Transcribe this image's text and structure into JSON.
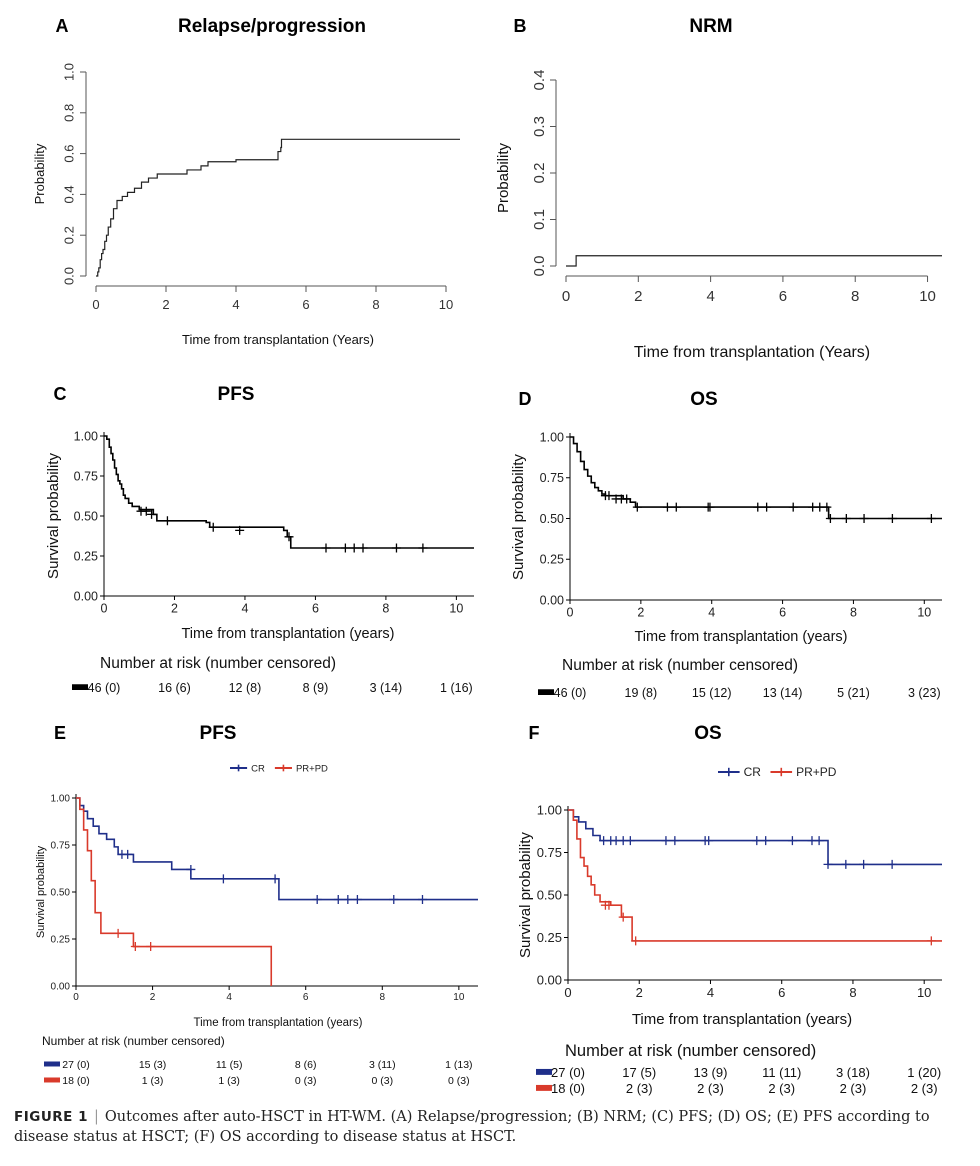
{
  "caption": {
    "label": "FIGURE 1",
    "separator": "|",
    "text": "Outcomes after auto-HSCT in HT-WM. (A) Relapse/progression; (B) NRM; (C) PFS; (D) OS; (E) PFS according to disease status at HSCT; (F) OS according to disease status at HSCT."
  },
  "chart_data": [
    {
      "panel": "A",
      "title": "Relapse/progression",
      "type": "line",
      "xlabel": "Time from transplantation (Years)",
      "ylabel": "Probability",
      "xlim": [
        0,
        10.4
      ],
      "ylim": [
        0,
        1.0
      ],
      "xticks": [
        0,
        2,
        4,
        6,
        8,
        10
      ],
      "yticks": [
        "0.0",
        "0.2",
        "0.4",
        "0.6",
        "0.8",
        "1.0"
      ],
      "series": [
        {
          "color": "#222222",
          "x": [
            0,
            0.05,
            0.08,
            0.12,
            0.16,
            0.2,
            0.25,
            0.3,
            0.35,
            0.42,
            0.5,
            0.6,
            0.75,
            0.9,
            1.1,
            1.3,
            1.5,
            1.75,
            2.0,
            2.3,
            2.6,
            3.0,
            3.2,
            4.0,
            5.2,
            5.28,
            5.3,
            10.4
          ],
          "y": [
            0,
            0.02,
            0.04,
            0.08,
            0.11,
            0.13,
            0.17,
            0.2,
            0.24,
            0.28,
            0.33,
            0.37,
            0.39,
            0.41,
            0.43,
            0.46,
            0.48,
            0.5,
            0.5,
            0.5,
            0.52,
            0.54,
            0.56,
            0.57,
            0.61,
            0.63,
            0.67,
            0.67
          ]
        }
      ]
    },
    {
      "panel": "B",
      "title": "NRM",
      "type": "line",
      "xlabel": "Time from transplantation (Years)",
      "ylabel": "Probability",
      "xlim": [
        0,
        10.4
      ],
      "ylim": [
        0,
        0.4
      ],
      "xticks": [
        0,
        2,
        4,
        6,
        8,
        10
      ],
      "yticks": [
        "0.0",
        "0.1",
        "0.2",
        "0.3",
        "0.4"
      ],
      "series": [
        {
          "color": "#222222",
          "x": [
            0,
            0.28,
            10.4
          ],
          "y": [
            0,
            0.022,
            0.022
          ]
        }
      ]
    },
    {
      "panel": "C",
      "title": "PFS",
      "type": "line",
      "xlabel": "Time from transplantation (years)",
      "ylabel": "Survival probability",
      "xlim": [
        0,
        10.5
      ],
      "ylim": [
        0,
        1.0
      ],
      "xticks": [
        0,
        2,
        4,
        6,
        8,
        10
      ],
      "yticks": [
        "0.00",
        "0.25",
        "0.50",
        "0.75",
        "1.00"
      ],
      "series": [
        {
          "color": "#000000",
          "x": [
            0,
            0.08,
            0.15,
            0.2,
            0.25,
            0.3,
            0.35,
            0.4,
            0.45,
            0.5,
            0.55,
            0.6,
            0.7,
            0.8,
            0.9,
            1.0,
            1.4,
            1.5,
            2.0,
            2.9,
            3.0,
            5.1,
            5.2,
            5.3,
            10.5
          ],
          "y": [
            1.0,
            0.98,
            0.93,
            0.89,
            0.85,
            0.8,
            0.76,
            0.72,
            0.7,
            0.67,
            0.63,
            0.61,
            0.58,
            0.56,
            0.56,
            0.54,
            0.51,
            0.47,
            0.47,
            0.46,
            0.43,
            0.41,
            0.37,
            0.3,
            0.3
          ],
          "censor_x": [
            1.05,
            1.2,
            1.35,
            1.8,
            3.1,
            3.85,
            5.25,
            6.3,
            6.85,
            7.1,
            7.35,
            8.3,
            9.05
          ],
          "censor_y": [
            0.53,
            0.53,
            0.51,
            0.47,
            0.43,
            0.41,
            0.37,
            0.3,
            0.3,
            0.3,
            0.3,
            0.3,
            0.3
          ]
        }
      ],
      "risk_title": "Number at risk (number censored)",
      "risk_rows": [
        {
          "color": "#000000",
          "values": [
            "46 (0)",
            "16 (6)",
            "12 (8)",
            "8 (9)",
            "3 (14)",
            "1 (16)"
          ]
        }
      ]
    },
    {
      "panel": "D",
      "title": "OS",
      "type": "line",
      "xlabel": "Time from transplantation (years)",
      "ylabel": "Survival probability",
      "xlim": [
        0,
        10.5
      ],
      "ylim": [
        0,
        1.0
      ],
      "xticks": [
        0,
        2,
        4,
        6,
        8,
        10
      ],
      "yticks": [
        "0.00",
        "0.25",
        "0.50",
        "0.75",
        "1.00"
      ],
      "series": [
        {
          "color": "#000000",
          "x": [
            0,
            0.1,
            0.2,
            0.3,
            0.4,
            0.5,
            0.6,
            0.7,
            0.8,
            0.9,
            1.0,
            1.5,
            1.7,
            1.85,
            7.2,
            7.3,
            10.5
          ],
          "y": [
            1.0,
            0.96,
            0.91,
            0.85,
            0.8,
            0.76,
            0.72,
            0.69,
            0.67,
            0.65,
            0.64,
            0.62,
            0.6,
            0.57,
            0.57,
            0.5,
            0.5
          ],
          "censor_x": [
            1.0,
            1.1,
            1.3,
            1.45,
            1.6,
            1.9,
            2.75,
            3.0,
            3.9,
            3.95,
            5.3,
            5.55,
            6.3,
            6.85,
            7.05,
            7.25,
            7.35,
            7.8,
            8.3,
            9.1,
            10.2
          ],
          "censor_y": [
            0.64,
            0.64,
            0.62,
            0.62,
            0.62,
            0.57,
            0.57,
            0.57,
            0.57,
            0.57,
            0.57,
            0.57,
            0.57,
            0.57,
            0.57,
            0.57,
            0.5,
            0.5,
            0.5,
            0.5,
            0.5
          ]
        }
      ],
      "risk_title": "Number at risk (number censored)",
      "risk_rows": [
        {
          "color": "#000000",
          "values": [
            "46 (0)",
            "19 (8)",
            "15 (12)",
            "13 (14)",
            "5 (21)",
            "3 (23)"
          ]
        }
      ]
    },
    {
      "panel": "E",
      "title": "PFS",
      "type": "line",
      "xlabel": "Time from transplantation (years)",
      "ylabel": "Survival probability",
      "xlim": [
        0,
        10.5
      ],
      "ylim": [
        0,
        1.0
      ],
      "xticks": [
        0,
        2,
        4,
        6,
        8,
        10
      ],
      "yticks": [
        "0.00",
        "0.25",
        "0.50",
        "0.75",
        "1.00"
      ],
      "legend": "top",
      "series": [
        {
          "name": "CR",
          "color": "#1f2f8a",
          "x": [
            0,
            0.1,
            0.2,
            0.3,
            0.45,
            0.6,
            0.8,
            1.0,
            1.1,
            1.5,
            2.5,
            3.0,
            5.2,
            5.3,
            10.5
          ],
          "y": [
            1.0,
            0.96,
            0.93,
            0.89,
            0.85,
            0.81,
            0.78,
            0.74,
            0.7,
            0.66,
            0.62,
            0.57,
            0.57,
            0.46,
            0.46
          ],
          "censor_x": [
            1.2,
            1.35,
            3.0,
            3.85,
            5.2,
            6.3,
            6.85,
            7.1,
            7.35,
            8.3,
            9.05
          ],
          "censor_y": [
            0.7,
            0.7,
            0.62,
            0.57,
            0.57,
            0.46,
            0.46,
            0.46,
            0.46,
            0.46,
            0.46
          ]
        },
        {
          "name": "PR+PD",
          "color": "#d93a2b",
          "x": [
            0,
            0.1,
            0.2,
            0.3,
            0.4,
            0.5,
            0.65,
            1.5,
            5.1,
            5.1
          ],
          "y": [
            1.0,
            0.94,
            0.83,
            0.72,
            0.56,
            0.39,
            0.28,
            0.21,
            0.21,
            0.0
          ],
          "censor_x": [
            1.1,
            1.55,
            1.95
          ],
          "censor_y": [
            0.28,
            0.21,
            0.21
          ]
        }
      ],
      "risk_title": "Number at risk (number censored)",
      "risk_rows": [
        {
          "color": "#1f2f8a",
          "values": [
            "27 (0)",
            "15 (3)",
            "11 (5)",
            "8 (6)",
            "3 (11)",
            "1 (13)"
          ]
        },
        {
          "color": "#d93a2b",
          "values": [
            "18 (0)",
            "1 (3)",
            "1 (3)",
            "0 (3)",
            "0 (3)",
            "0 (3)"
          ]
        }
      ]
    },
    {
      "panel": "F",
      "title": "OS",
      "type": "line",
      "xlabel": "Time from transplantation (years)",
      "ylabel": "Survival probability",
      "xlim": [
        0,
        10.5
      ],
      "ylim": [
        0,
        1.0
      ],
      "xticks": [
        0,
        2,
        4,
        6,
        8,
        10
      ],
      "yticks": [
        "0.00",
        "0.25",
        "0.50",
        "0.75",
        "1.00"
      ],
      "legend": "top",
      "series": [
        {
          "name": "CR",
          "color": "#1f2f8a",
          "x": [
            0,
            0.15,
            0.3,
            0.5,
            0.7,
            0.9,
            7.2,
            7.3,
            10.5
          ],
          "y": [
            1.0,
            0.96,
            0.93,
            0.89,
            0.85,
            0.82,
            0.82,
            0.68,
            0.68
          ],
          "censor_x": [
            1.0,
            1.2,
            1.35,
            1.55,
            1.75,
            2.75,
            3.0,
            3.85,
            3.95,
            5.3,
            5.55,
            6.3,
            6.85,
            7.05,
            7.3,
            7.8,
            8.3,
            9.1
          ],
          "censor_y": [
            0.82,
            0.82,
            0.82,
            0.82,
            0.82,
            0.82,
            0.82,
            0.82,
            0.82,
            0.82,
            0.82,
            0.82,
            0.82,
            0.82,
            0.68,
            0.68,
            0.68,
            0.68
          ]
        },
        {
          "name": "PR+PD",
          "color": "#d93a2b",
          "x": [
            0,
            0.15,
            0.25,
            0.35,
            0.45,
            0.55,
            0.65,
            0.75,
            0.9,
            1.2,
            1.5,
            1.8,
            10.5
          ],
          "y": [
            1.0,
            0.94,
            0.83,
            0.72,
            0.67,
            0.61,
            0.56,
            0.5,
            0.46,
            0.44,
            0.37,
            0.23,
            0.23
          ],
          "censor_x": [
            1.05,
            1.15,
            1.55,
            1.9,
            10.2
          ],
          "censor_y": [
            0.44,
            0.44,
            0.37,
            0.23,
            0.23
          ]
        }
      ],
      "risk_title": "Number at risk (number censored)",
      "risk_rows": [
        {
          "color": "#1f2f8a",
          "values": [
            "27 (0)",
            "17 (5)",
            "13 (9)",
            "11 (11)",
            "3 (18)",
            "1 (20)"
          ]
        },
        {
          "color": "#d93a2b",
          "values": [
            "18 (0)",
            "2 (3)",
            "2 (3)",
            "2 (3)",
            "2 (3)",
            "2 (3)"
          ]
        }
      ]
    }
  ]
}
